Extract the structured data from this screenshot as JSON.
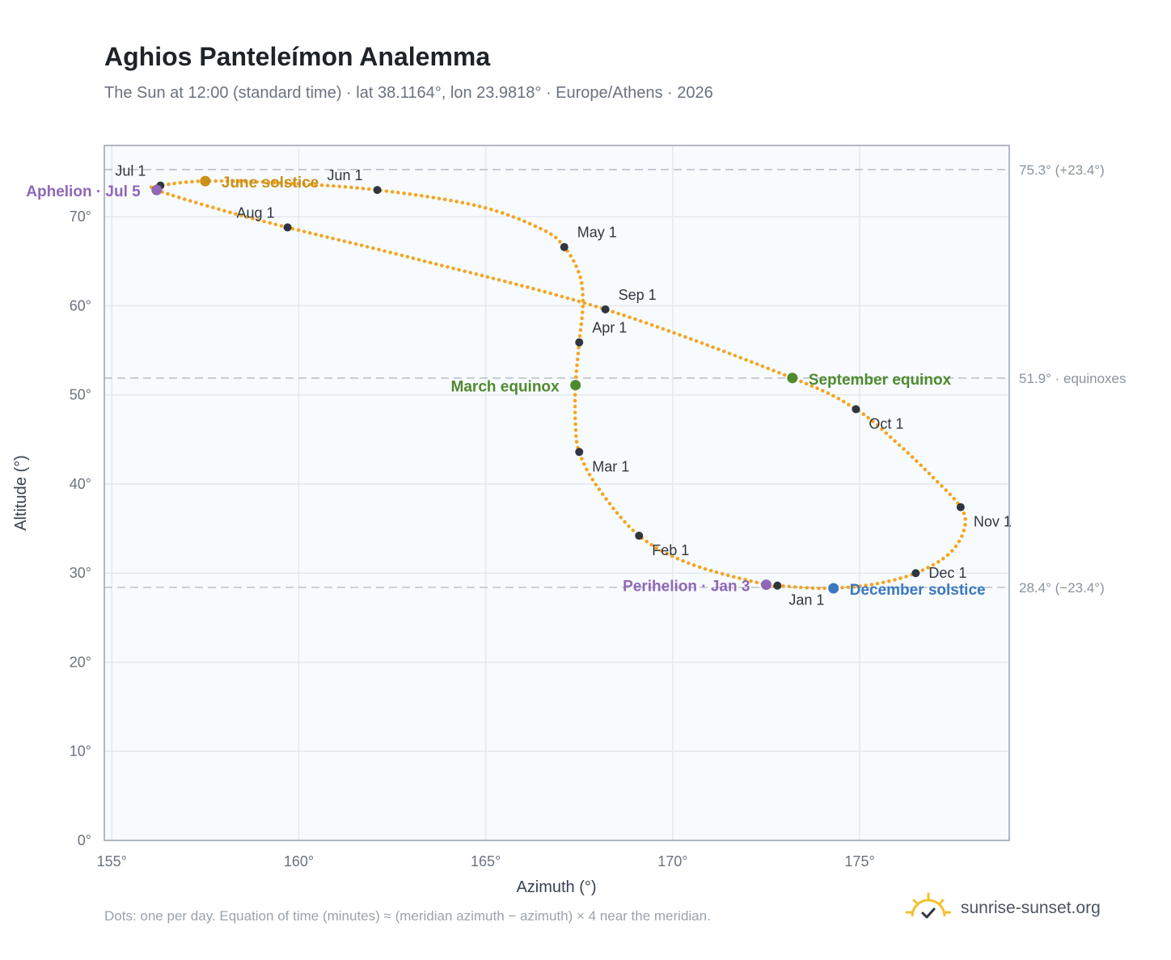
{
  "title": "Aghios Panteleímon Analemma",
  "subtitle": "The Sun at 12:00 (standard time) · lat 38.1164°, lon 23.9818° · Europe/Athens · 2026",
  "footnote": "Dots: one per day. Equation of time (minutes) ≈ (meridian azimuth − azimuth) × 4 near the meridian.",
  "brand": {
    "name": "sunrise-sunset.org",
    "icon": "sun-check-icon"
  },
  "colors": {
    "curve": "#f4a522",
    "month_dot": "#2f3640",
    "solstice_june": "#c9901a",
    "equinox": "#4f8a2f",
    "solstice_december": "#3a78c2",
    "apsis": "#9067b8",
    "reference_line": "#b9c2cc",
    "plot_bg": "#f8fbfd"
  },
  "chart_data": {
    "type": "scatter",
    "title": "Aghios Panteleímon Analemma",
    "xlabel": "Azimuth (°)",
    "ylabel": "Altitude (°)",
    "xlim": [
      154.8,
      179.0
    ],
    "ylim": [
      0,
      78
    ],
    "xticks": [
      155,
      160,
      165,
      170,
      175
    ],
    "xtick_labels": [
      "155°",
      "160°",
      "165°",
      "170°",
      "175°"
    ],
    "yticks": [
      0,
      10,
      20,
      30,
      40,
      50,
      60,
      70
    ],
    "ytick_labels": [
      "0°",
      "10°",
      "20°",
      "30°",
      "40°",
      "50°",
      "60°",
      "70°"
    ],
    "grid": true,
    "curve_points": [
      {
        "x": 172.8,
        "y": 28.6
      },
      {
        "x": 174.0,
        "y": 28.3
      },
      {
        "x": 175.3,
        "y": 28.7
      },
      {
        "x": 176.5,
        "y": 30.0
      },
      {
        "x": 177.4,
        "y": 32.2
      },
      {
        "x": 177.8,
        "y": 35.0
      },
      {
        "x": 177.7,
        "y": 37.4
      },
      {
        "x": 176.9,
        "y": 41.0
      },
      {
        "x": 176.0,
        "y": 44.6
      },
      {
        "x": 174.9,
        "y": 48.4
      },
      {
        "x": 173.2,
        "y": 51.9
      },
      {
        "x": 168.2,
        "y": 59.6
      },
      {
        "x": 163.0,
        "y": 65.4
      },
      {
        "x": 159.7,
        "y": 68.8
      },
      {
        "x": 157.9,
        "y": 70.8
      },
      {
        "x": 156.2,
        "y": 73.0
      },
      {
        "x": 156.3,
        "y": 73.5
      },
      {
        "x": 157.5,
        "y": 74.0
      },
      {
        "x": 159.5,
        "y": 73.8
      },
      {
        "x": 162.1,
        "y": 73.0
      },
      {
        "x": 164.8,
        "y": 71.2
      },
      {
        "x": 166.5,
        "y": 68.6
      },
      {
        "x": 167.1,
        "y": 66.6
      },
      {
        "x": 167.5,
        "y": 63.6
      },
      {
        "x": 167.6,
        "y": 60.4
      },
      {
        "x": 167.5,
        "y": 55.9
      },
      {
        "x": 167.4,
        "y": 51.1
      },
      {
        "x": 167.4,
        "y": 46.8
      },
      {
        "x": 167.5,
        "y": 43.6
      },
      {
        "x": 168.0,
        "y": 39.6
      },
      {
        "x": 169.1,
        "y": 34.2
      },
      {
        "x": 170.5,
        "y": 31.0
      },
      {
        "x": 172.5,
        "y": 28.7
      },
      {
        "x": 172.8,
        "y": 28.6
      }
    ],
    "month_markers": [
      {
        "label": "Jan 1",
        "x": 172.8,
        "y": 28.6
      },
      {
        "label": "Feb 1",
        "x": 169.1,
        "y": 34.2
      },
      {
        "label": "Mar 1",
        "x": 167.5,
        "y": 43.6
      },
      {
        "label": "Apr 1",
        "x": 167.5,
        "y": 55.9
      },
      {
        "label": "May 1",
        "x": 167.1,
        "y": 66.6
      },
      {
        "label": "Jun 1",
        "x": 162.1,
        "y": 73.0
      },
      {
        "label": "Jul 1",
        "x": 156.3,
        "y": 73.5
      },
      {
        "label": "Aug 1",
        "x": 159.7,
        "y": 68.8
      },
      {
        "label": "Sep 1",
        "x": 168.2,
        "y": 59.6
      },
      {
        "label": "Oct 1",
        "x": 174.9,
        "y": 48.4
      },
      {
        "label": "Nov 1",
        "x": 177.7,
        "y": 37.4
      },
      {
        "label": "Dec 1",
        "x": 176.5,
        "y": 30.0
      }
    ],
    "events": [
      {
        "label": "June solstice",
        "x": 157.5,
        "y": 74.0,
        "color": "#c9901a"
      },
      {
        "label": "September equinox",
        "x": 173.2,
        "y": 51.9,
        "color": "#4f8a2f"
      },
      {
        "label": "March equinox",
        "x": 167.4,
        "y": 51.1,
        "color": "#4f8a2f"
      },
      {
        "label": "December solstice",
        "x": 174.3,
        "y": 28.3,
        "color": "#3a78c2"
      },
      {
        "label": "Aphelion · Jul 5",
        "x": 156.2,
        "y": 73.0,
        "color": "#9067b8"
      },
      {
        "label": "Perihelion · Jan 3",
        "x": 172.5,
        "y": 28.7,
        "color": "#9067b8"
      }
    ],
    "reference_lines": [
      {
        "y": 75.3,
        "label": "75.3° (+23.4°)"
      },
      {
        "y": 51.9,
        "label": "51.9° · equinoxes"
      },
      {
        "y": 28.4,
        "label": "28.4° (−23.4°)"
      }
    ]
  }
}
